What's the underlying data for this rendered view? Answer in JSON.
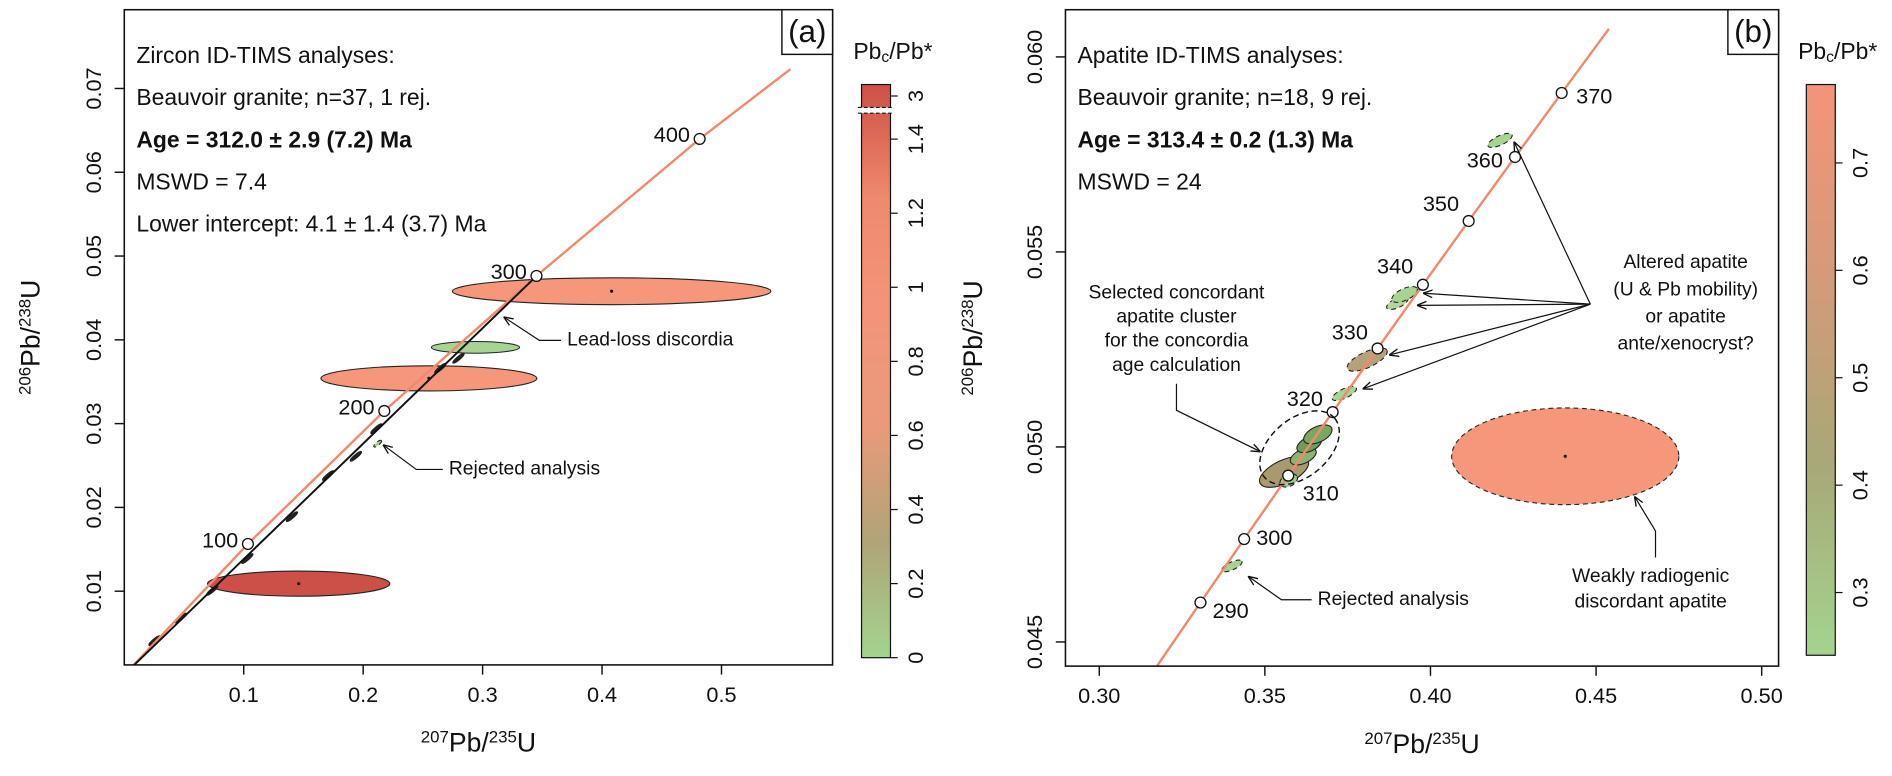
{
  "chart_data": [
    {
      "type": "concordia",
      "panel_label": "(a)",
      "info": [
        "Zircon ID-TIMS analyses:",
        "Beauvoir granite; n=37, 1 rej.",
        "Age = 312.0 ± 2.9 (7.2) Ma",
        "MSWD = 7.4",
        "Lower intercept: 4.1 ± 1.4 (3.7) Ma"
      ],
      "info_bold": 2,
      "xlabel": [
        "207",
        "Pb/",
        "235",
        "U"
      ],
      "ylabel": [
        "206",
        "Pb/",
        "238",
        "U"
      ],
      "xlim": [
        0.0,
        0.593
      ],
      "ylim": [
        0.0012,
        0.0794
      ],
      "xticks": [
        0.1,
        0.2,
        0.3,
        0.4,
        0.5
      ],
      "yticks": [
        0.01,
        0.02,
        0.03,
        0.04,
        0.05,
        0.06,
        0.07
      ],
      "concordia": {
        "color": "#f08a6c",
        "x": [
          0.0,
          0.1035,
          0.2177,
          0.3451,
          0.4817,
          0.5577
        ],
        "y": [
          0.0,
          0.01564,
          0.03151,
          0.04763,
          0.06398,
          0.0723
        ],
        "ages": [
          null,
          100,
          200,
          300,
          400,
          null
        ]
      },
      "discordia": {
        "color": "#111111",
        "x": [
          0.004,
          0.345
        ],
        "y": [
          0.0006,
          0.0476
        ]
      },
      "ellipses": {
        "x": [
          0.408,
          0.255,
          0.146,
          0.294,
          0.0253,
          0.0475,
          0.0737,
          0.103,
          0.1404,
          0.1707,
          0.1939,
          0.2111,
          0.2646,
          0.2798,
          0.2121
        ],
        "y": [
          0.0458,
          0.0354,
          0.0109,
          0.0391,
          0.0041,
          0.0068,
          0.0101,
          0.0139,
          0.0189,
          0.0238,
          0.0261,
          0.0294,
          0.0366,
          0.0378,
          0.0276
        ],
        "rx": [
          0.1333,
          0.0904,
          0.0763,
          0.0369,
          0.006,
          0.006,
          0.006,
          0.006,
          0.006,
          0.006,
          0.006,
          0.006,
          0.006,
          0.006,
          0.004
        ],
        "ry": [
          0.0016,
          0.0015,
          0.0015,
          0.0007,
          0.0002,
          0.0002,
          0.0002,
          0.0002,
          0.0002,
          0.0002,
          0.0002,
          0.0002,
          0.0002,
          0.0002,
          0.0002
        ],
        "colors": [
          "#f4977b",
          "#f4977b",
          "#cd5048",
          "#a8d493",
          "#222222",
          "#222222",
          "#222222",
          "#222222",
          "#222222",
          "#222222",
          "#222222",
          "#222222",
          "#222222",
          "#222222",
          "#a8d493"
        ],
        "dashed": [
          false,
          false,
          false,
          false,
          false,
          false,
          false,
          false,
          false,
          false,
          false,
          false,
          false,
          false,
          true
        ]
      },
      "colorbar": {
        "label": [
          "Pb",
          "c",
          "/Pb*"
        ],
        "lim": [
          0,
          3.05
        ],
        "break": [
          1.47,
          2.95
        ],
        "ticks": [
          0,
          0.2,
          0.4,
          0.6,
          0.8,
          1.0,
          1.2,
          1.4,
          3
        ],
        "colors": [
          "#a3d48f",
          "#b0a478",
          "#e99a7a",
          "#f3947a",
          "#f08a6c",
          "#cd5048"
        ]
      },
      "annotations": [
        {
          "lines": [
            "Lead-loss discordia"
          ]
        },
        {
          "lines": [
            "Rejected analysis"
          ]
        }
      ]
    },
    {
      "type": "concordia",
      "panel_label": "(b)",
      "info": [
        "Apatite ID-TIMS analyses:",
        "Beauvoir granite; n=18, 9 rej.",
        "Age = 313.4 ± 0.2 (1.3) Ma",
        "MSWD = 24"
      ],
      "info_bold": 2,
      "xlabel": [
        "207",
        "Pb/",
        "235",
        "U"
      ],
      "ylabel": [
        "206",
        "Pb/",
        "238",
        "U"
      ],
      "xlim": [
        0.2898,
        0.5051
      ],
      "ylim": [
        0.04438,
        0.06121
      ],
      "xticks": [
        {
          "value": 0.3,
          "label": "0.30"
        },
        0.35,
        {
          "value": 0.4,
          "label": "0.40"
        },
        0.45,
        {
          "value": 0.5,
          "label": "0.50"
        }
      ],
      "yticks": [
        0.045,
        {
          "value": 0.05,
          "label": "0.050"
        },
        0.055,
        {
          "value": 0.06,
          "label": "0.060"
        }
      ],
      "concordia": {
        "color": "#f08a6c",
        "x": [
          0.31753,
          0.33056,
          0.34375,
          0.35705,
          0.37047,
          0.38403,
          0.39771,
          0.41154,
          0.42553,
          0.43961,
          0.45388
        ],
        "y": [
          0.044392,
          0.04601,
          0.047638,
          0.049264,
          0.050893,
          0.052524,
          0.054158,
          0.055794,
          0.057434,
          0.059076,
          0.06072
        ],
        "ages": [
          null,
          290,
          300,
          310,
          320,
          330,
          340,
          350,
          360,
          370,
          null
        ]
      },
      "ellipses": {
        "x": [
          0.3401,
          0.3558,
          0.3572,
          0.3616,
          0.3634,
          0.366,
          0.374,
          0.3809,
          0.39,
          0.3922,
          0.421,
          0.4407
        ],
        "y": [
          0.04695,
          0.04936,
          0.04914,
          0.04976,
          0.05007,
          0.05032,
          0.05137,
          0.05224,
          0.05369,
          0.05391,
          0.05786,
          0.04976
        ],
        "rx": [
          0.0033,
          0.008,
          0.0028,
          0.0042,
          0.004,
          0.0046,
          0.004,
          0.0066,
          0.0035,
          0.0042,
          0.004,
          0.0343
        ],
        "ry": [
          0.0001,
          0.0003,
          0.00015,
          0.00018,
          0.00018,
          0.0002,
          0.00012,
          0.0002,
          0.00012,
          0.00015,
          0.00012,
          0.00124
        ],
        "colors": [
          "#a8d493",
          "#a89a6e",
          "#9cc985",
          "#8db372",
          "#6f9c58",
          "#7aa862",
          "#a8d493",
          "#b5a27a",
          "#b8d39b",
          "#a8d493",
          "#a8d493",
          "#f4977b"
        ],
        "dashed": [
          true,
          false,
          true,
          false,
          false,
          false,
          true,
          true,
          true,
          true,
          true,
          true
        ]
      },
      "colorbar": {
        "label": [
          "Pb",
          "c",
          "/Pb*"
        ],
        "lim": [
          0.2416,
          0.773
        ],
        "ticks": [
          0.3,
          0.4,
          0.5,
          0.6,
          0.7
        ],
        "colors": [
          "#a3d48f",
          "#a8a878",
          "#d59a7a",
          "#f3947a"
        ]
      },
      "annotations": [
        {
          "lines": [
            "Selected concordant",
            "apatite cluster",
            "for the concordia",
            "age calculation"
          ]
        },
        {
          "lines": [
            "Altered apatite",
            "(U & Pb mobility)",
            "or apatite",
            "ante/xenocryst?"
          ]
        },
        {
          "lines": [
            "Rejected analysis"
          ]
        },
        {
          "lines": [
            "Weakly radiogenic",
            "discordant apatite"
          ]
        }
      ]
    }
  ]
}
